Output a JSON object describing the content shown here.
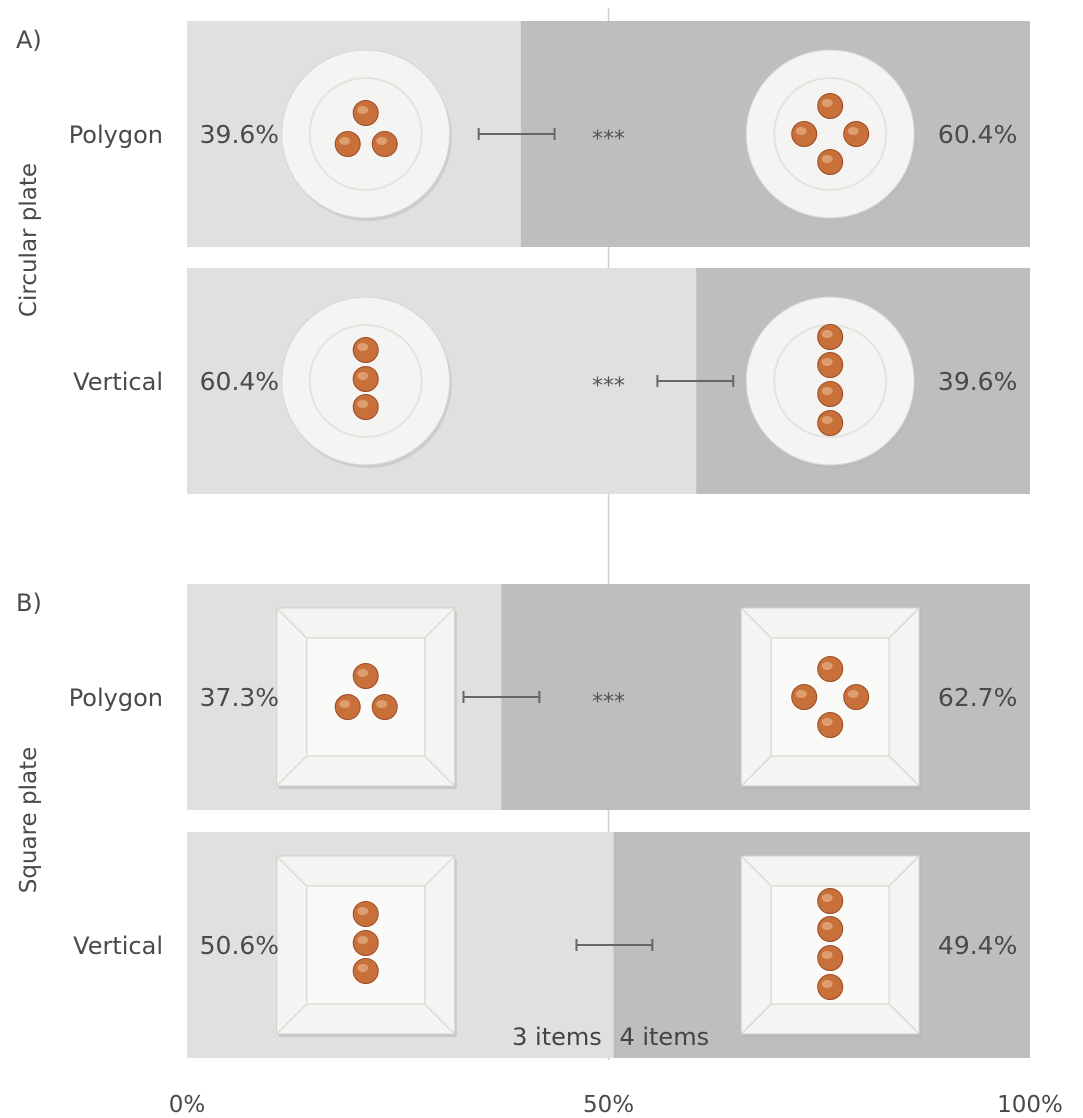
{
  "colors": {
    "three_items": "#e0e0df",
    "four_items": "#bebebe",
    "gap": "#ffffff",
    "gridline": "#cfcfcf",
    "errorbar": "#666666",
    "text": "#4a4a4a",
    "plate": "#f4f4f2",
    "food": "#c8703a"
  },
  "chart_data": {
    "type": "bar",
    "orientation": "horizontal",
    "stacked": true,
    "xlim": [
      0,
      100
    ],
    "x_ticks": [
      "0%",
      "50%",
      "100%"
    ],
    "legend": {
      "three_items": "3 items",
      "four_items": "4 items"
    },
    "panels": [
      {
        "label": "A)",
        "group": "Circular plate",
        "plate": "circular",
        "rows": [
          {
            "category": "Polygon",
            "three_items": 39.6,
            "four_items": 60.4,
            "three_items_label": "39.6%",
            "four_items_label": "60.4%",
            "error_bar": [
              34.6,
              43.6
            ],
            "significance": "***"
          },
          {
            "category": "Vertical",
            "three_items": 60.4,
            "four_items": 39.6,
            "three_items_label": "60.4%",
            "four_items_label": "39.6%",
            "error_bar": [
              55.8,
              64.8
            ],
            "significance": "***"
          }
        ]
      },
      {
        "label": "B)",
        "group": "Square plate",
        "plate": "square",
        "rows": [
          {
            "category": "Polygon",
            "three_items": 37.3,
            "four_items": 62.7,
            "three_items_label": "37.3%",
            "four_items_label": "62.7%",
            "error_bar": [
              32.8,
              41.8
            ],
            "significance": "***"
          },
          {
            "category": "Vertical",
            "three_items": 50.6,
            "four_items": 49.4,
            "three_items_label": "50.6%",
            "four_items_label": "49.4%",
            "error_bar": [
              46.2,
              55.2
            ],
            "significance": ""
          }
        ]
      }
    ]
  }
}
